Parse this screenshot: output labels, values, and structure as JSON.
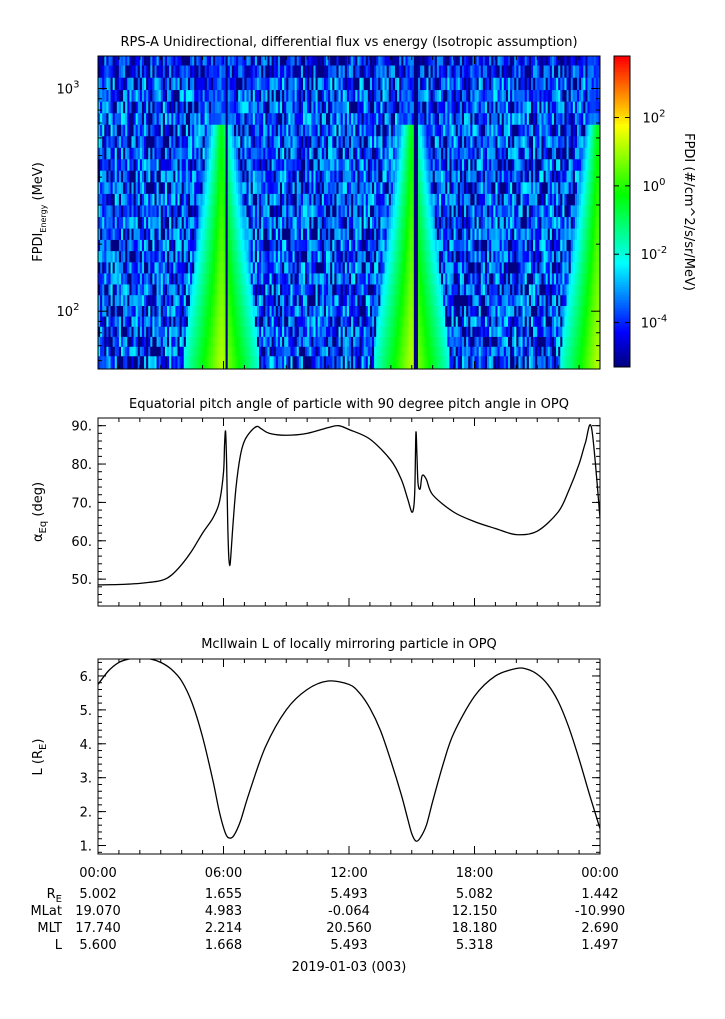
{
  "chart_data": [
    {
      "type": "heatmap",
      "title": "RPS-A Unidirectional, differential flux vs energy (Isotropic assumption)",
      "ylabel_main": "FPDI",
      "ylabel_sub": "Energy",
      "ylabel_unit": " (MeV)",
      "yscale": "log",
      "ylim": [
        55,
        1400
      ],
      "ytick_values": [
        100,
        1000
      ],
      "ytick_base": "10",
      "ytick_exps": [
        "2",
        "3"
      ],
      "energy_channels_mev": [
        60,
        66,
        73,
        81,
        90,
        100,
        112,
        125,
        140,
        157,
        176,
        198,
        222,
        250,
        282,
        318,
        358,
        404,
        455,
        512,
        577,
        650,
        732,
        825,
        930,
        1048,
        1200,
        1350
      ],
      "flux_peaks_hours": [
        5.9,
        15.0,
        23.9
      ],
      "narrow_dropouts_hours": [
        6.15,
        15.2
      ],
      "colorbar": {
        "label": "FPDI (#/cm^2/s/sr/MeV)",
        "log_range": [
          -5.3,
          3.8
        ],
        "tick_base": "10",
        "tick_exps": [
          "-4",
          "-2",
          "0",
          "2"
        ],
        "tick_values": [
          -4,
          -2,
          0,
          2
        ],
        "colormap": [
          "#000080",
          "#0000ff",
          "#0080ff",
          "#00ffff",
          "#00ff80",
          "#00ff00",
          "#80ff00",
          "#ffff00",
          "#ff8000",
          "#ff0000"
        ]
      }
    },
    {
      "type": "line",
      "title": "Equatorial pitch angle of particle with 90 degree pitch angle in OPQ",
      "ylabel_main": "α",
      "ylabel_sub": "Eq",
      "ylabel_unit": " (deg)",
      "ylim": [
        43,
        92
      ],
      "yticks": [
        "50.",
        "60.",
        "70.",
        "80.",
        "90."
      ],
      "ytick_values": [
        50,
        60,
        70,
        80,
        90
      ],
      "x_hours": [
        0,
        1,
        2,
        3,
        3.5,
        4,
        4.5,
        5,
        5.5,
        5.8,
        6.0,
        6.05,
        6.1,
        6.15,
        6.2,
        6.25,
        6.3,
        6.35,
        6.45,
        6.6,
        6.8,
        7.0,
        7.3,
        7.6,
        7.8,
        8.2,
        9,
        10,
        11,
        11.5,
        12,
        13,
        14,
        14.5,
        14.8,
        15.0,
        15.1,
        15.15,
        15.2,
        15.25,
        15.3,
        15.4,
        15.5,
        15.7,
        16,
        17,
        18,
        19,
        20,
        21,
        22,
        22.5,
        23,
        23.3,
        23.6,
        24
      ],
      "values": [
        48.5,
        48.6,
        48.9,
        49.6,
        51,
        53.8,
        57.5,
        62,
        66,
        70,
        77.8,
        85,
        88.5,
        80,
        65,
        56,
        53.5,
        56,
        64,
        74,
        82,
        86,
        88.5,
        89.8,
        89.2,
        88,
        87.5,
        88,
        89.5,
        90,
        89,
        86.5,
        81,
        76,
        71,
        67.5,
        69,
        74,
        88.2,
        82,
        75,
        73.5,
        77,
        76,
        72,
        67.5,
        65,
        63.2,
        61.6,
        62.5,
        67.5,
        73,
        80,
        85.5,
        89.3,
        66
      ]
    },
    {
      "type": "line",
      "title": "McIlwain L of locally mirroring particle in OPQ",
      "ylabel_main": "L (R",
      "ylabel_sub": "E",
      "ylabel_unit": ")",
      "ylim": [
        0.75,
        6.5
      ],
      "yticks": [
        "1.",
        "2.",
        "3.",
        "4.",
        "5.",
        "6."
      ],
      "ytick_values": [
        1,
        2,
        3,
        4,
        5,
        6
      ],
      "x_hours": [
        0,
        0.5,
        1,
        1.5,
        2,
        2.5,
        3,
        3.5,
        4,
        4.5,
        5,
        5.5,
        5.8,
        6.1,
        6.3,
        6.5,
        6.8,
        7.2,
        8,
        9,
        10,
        11,
        12,
        12.5,
        13,
        13.5,
        14,
        14.5,
        14.8,
        15.0,
        15.2,
        15.4,
        15.7,
        16,
        16.5,
        17,
        18,
        19,
        20,
        20.5,
        21,
        21.5,
        22,
        22.5,
        23,
        23.5,
        24
      ],
      "values": [
        5.75,
        6.15,
        6.4,
        6.5,
        6.52,
        6.5,
        6.4,
        6.2,
        5.85,
        5.2,
        4.2,
        2.9,
        2.0,
        1.35,
        1.22,
        1.3,
        1.7,
        2.5,
        3.9,
        5.0,
        5.6,
        5.85,
        5.75,
        5.5,
        5.05,
        4.4,
        3.5,
        2.5,
        1.8,
        1.35,
        1.13,
        1.22,
        1.6,
        2.3,
        3.4,
        4.3,
        5.4,
        6.0,
        6.22,
        6.2,
        6.05,
        5.75,
        5.25,
        4.5,
        3.55,
        2.5,
        1.5
      ]
    }
  ],
  "time_axis": {
    "labels": [
      "00:00",
      "06:00",
      "12:00",
      "18:00",
      "00:00"
    ],
    "label_hours": [
      0,
      6,
      12,
      18,
      24
    ],
    "minor_hours": [
      1,
      2,
      3,
      4,
      5,
      7,
      8,
      9,
      10,
      11,
      13,
      14,
      15,
      16,
      17,
      19,
      20,
      21,
      22,
      23
    ],
    "date_label": "2019-01-03 (003)"
  },
  "ephemeris": {
    "rows": [
      {
        "name": "R",
        "sub": "E",
        "values": [
          "5.002",
          "1.655",
          "5.493",
          "5.082",
          "1.442"
        ]
      },
      {
        "name": "MLat",
        "sub": "",
        "values": [
          "19.070",
          "4.983",
          "-0.064",
          "12.150",
          "-10.990"
        ]
      },
      {
        "name": "MLT",
        "sub": "",
        "values": [
          "17.740",
          "2.214",
          "20.560",
          "18.180",
          "2.690"
        ]
      },
      {
        "name": "L",
        "sub": "",
        "values": [
          "5.600",
          "1.668",
          "5.493",
          "5.318",
          "1.497"
        ]
      }
    ]
  }
}
